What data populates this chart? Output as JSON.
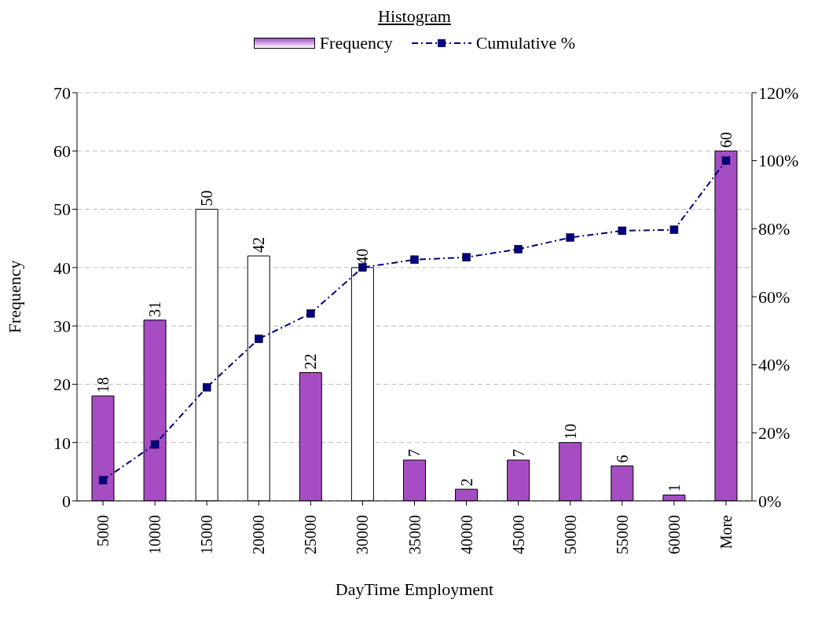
{
  "chart_data": {
    "type": "bar",
    "title": "Histogram",
    "xlabel": "DayTime Employment",
    "ylabel": "Frequency",
    "categories": [
      "5000",
      "10000",
      "15000",
      "20000",
      "25000",
      "30000",
      "35000",
      "40000",
      "45000",
      "50000",
      "55000",
      "60000",
      "More"
    ],
    "series": [
      {
        "name": "Frequency",
        "color": "#a64dc4",
        "colors": [
          "#a64dc4",
          "#a64dc4",
          "#ffffff",
          "#ffffff",
          "#a64dc4",
          "#ffffff",
          "#a64dc4",
          "#a64dc4",
          "#a64dc4",
          "#a64dc4",
          "#a64dc4",
          "#a64dc4",
          "#a64dc4"
        ],
        "values": [
          18,
          31,
          50,
          42,
          22,
          40,
          7,
          2,
          7,
          10,
          6,
          1,
          60
        ],
        "value_labels": [
          "18",
          "31",
          "50",
          "42",
          "22",
          "40",
          "7",
          "2",
          "7",
          "10",
          "6",
          "1",
          "60"
        ]
      },
      {
        "name": "Cumulative %",
        "type": "line",
        "axis": "y2",
        "color": "#000080",
        "values": [
          6.1,
          16.6,
          33.4,
          47.6,
          55.1,
          68.6,
          70.9,
          71.6,
          74.0,
          77.4,
          79.4,
          79.7,
          100
        ]
      }
    ],
    "ylim": [
      0,
      70
    ],
    "yticks": [
      0,
      10,
      20,
      30,
      40,
      50,
      60,
      70
    ],
    "y2lim": [
      0,
      120
    ],
    "y2ticks": [
      {
        "value": 0,
        "label": "0%"
      },
      {
        "value": 20,
        "label": "20%"
      },
      {
        "value": 40,
        "label": "40%"
      },
      {
        "value": 60,
        "label": "60%"
      },
      {
        "value": 80,
        "label": "80%"
      },
      {
        "value": 100,
        "label": "100%"
      },
      {
        "value": 120,
        "label": "120%"
      }
    ],
    "grid": "y",
    "legend": "top",
    "marker": "square",
    "line_style": "dashed"
  }
}
